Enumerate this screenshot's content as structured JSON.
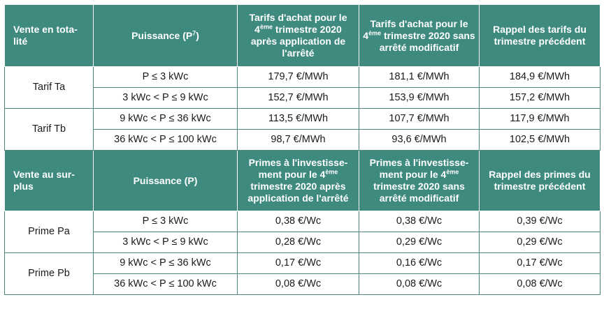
{
  "section1": {
    "header": {
      "col0": "Vente en tota-lité",
      "col1": "Puissance (P",
      "col1_sup": "7",
      "col1_after": ")",
      "col2_a": "Tarifs d'achat pour le 4",
      "col2_sup": "ème",
      "col2_b": " trimestre 2020 après application de l'arrêté",
      "col3_a": "Tarifs d'achat pour le 4",
      "col3_sup": "ème",
      "col3_b": " trimestre 2020 sans arrêté modificatif",
      "col4": "Rappel des tarifs du trimestre précédent"
    },
    "groups": [
      {
        "label": "Tarif Ta",
        "rows": [
          {
            "puissance": "P ≤ 3 kWc",
            "v1": "179,7 €/MWh",
            "v2": "181,1 €/MWh",
            "v3": "184,9 €/MWh"
          },
          {
            "puissance": "3 kWc < P ≤ 9 kWc",
            "v1": "152,7 €/MWh",
            "v2": "153,9 €/MWh",
            "v3": "157,2 €/MWh"
          }
        ]
      },
      {
        "label": "Tarif Tb",
        "rows": [
          {
            "puissance": "9 kWc < P ≤ 36 kWc",
            "v1": "113,5 €/MWh",
            "v2": "107,7 €/MWh",
            "v3": "117,9 €/MWh"
          },
          {
            "puissance": "36 kWc < P ≤ 100 kWc",
            "v1": "98,7 €/MWh",
            "v2": "93,6 €/MWh",
            "v3": "102,5 €/MWh"
          }
        ]
      }
    ]
  },
  "section2": {
    "header": {
      "col0": "Vente au sur-plus",
      "col1": "Puissance (P)",
      "col2_a": "Primes à l'investisse-ment pour le 4",
      "col2_sup": "ème",
      "col2_b": " trimestre 2020 après application de l'arrêté",
      "col3_a": "Primes à l'investisse-ment pour le 4",
      "col3_sup": "ème",
      "col3_b": " trimestre 2020 sans arrêté modificatif",
      "col4": "Rappel des primes du trimestre précédent"
    },
    "groups": [
      {
        "label": "Prime Pa",
        "rows": [
          {
            "puissance": "P ≤ 3 kWc",
            "v1": "0,38 €/Wc",
            "v2": "0,38 €/Wc",
            "v3": "0,39 €/Wc"
          },
          {
            "puissance": "3 kWc < P ≤ 9 kWc",
            "v1": "0,28 €/Wc",
            "v2": "0,29 €/Wc",
            "v3": "0,29 €/Wc"
          }
        ]
      },
      {
        "label": "Prime Pb",
        "rows": [
          {
            "puissance": "9 kWc < P ≤ 36 kWc",
            "v1": "0,17 €/Wc",
            "v2": "0,16 €/Wc",
            "v3": "0,17 €/Wc"
          },
          {
            "puissance": "36 kWc < P ≤ 100 kWc",
            "v1": "0,08 €/Wc",
            "v2": "0,08 €/Wc",
            "v3": "0,08 €/Wc"
          }
        ]
      }
    ]
  },
  "colors": {
    "header_bg": "#3f8a7f",
    "border": "#4b8a80",
    "header_text": "#ffffff"
  }
}
